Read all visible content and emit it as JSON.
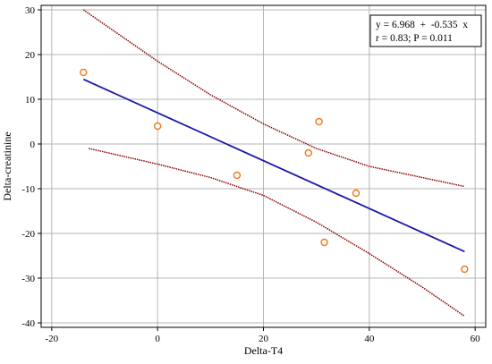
{
  "chart_data": {
    "type": "scatter",
    "xlabel": "Delta-T4",
    "ylabel": "Delta-creatinine",
    "xlim": [
      -22,
      62
    ],
    "ylim": [
      -41,
      31
    ],
    "x_ticks": [
      -20,
      0,
      20,
      40,
      60
    ],
    "y_ticks": [
      30,
      20,
      10,
      0,
      -10,
      -20,
      -30,
      -40
    ],
    "x_tick_labels": [
      "-20",
      "0",
      "20",
      "40",
      "60"
    ],
    "y_tick_labels": [
      "30",
      "20",
      "10",
      "0",
      "-10",
      "-20",
      "-30",
      "-40"
    ],
    "grid": true,
    "points": [
      {
        "x": -14,
        "y": 16
      },
      {
        "x": 0,
        "y": 4
      },
      {
        "x": 15,
        "y": -7
      },
      {
        "x": 28.5,
        "y": -2
      },
      {
        "x": 30.5,
        "y": 5
      },
      {
        "x": 31.5,
        "y": -22
      },
      {
        "x": 37.5,
        "y": -11
      },
      {
        "x": 58,
        "y": -28
      }
    ],
    "regression": {
      "intercept": 6.968,
      "slope": -0.535,
      "x_range": [
        -14,
        58
      ]
    },
    "confidence_upper": [
      {
        "x": -14,
        "y": 30
      },
      {
        "x": 0,
        "y": 18.5
      },
      {
        "x": 10,
        "y": 11
      },
      {
        "x": 20,
        "y": 4.5
      },
      {
        "x": 30,
        "y": -1
      },
      {
        "x": 40,
        "y": -5
      },
      {
        "x": 50,
        "y": -7.5
      },
      {
        "x": 58,
        "y": -9.5
      }
    ],
    "confidence_lower": [
      {
        "x": -13,
        "y": -1
      },
      {
        "x": 0,
        "y": -4.5
      },
      {
        "x": 10,
        "y": -7.5
      },
      {
        "x": 20,
        "y": -11.5
      },
      {
        "x": 30,
        "y": -17.5
      },
      {
        "x": 40,
        "y": -24.5
      },
      {
        "x": 50,
        "y": -32
      },
      {
        "x": 58,
        "y": -38.5
      }
    ],
    "stats": {
      "line1": "y = 6.968  +  -0.535  x",
      "line2": "r = 0.83; P = 0.011"
    },
    "colors": {
      "points": "#f07818",
      "regression": "#1a1aa6",
      "confidence": "#8b0000",
      "grid": "#b4b4b4"
    }
  }
}
